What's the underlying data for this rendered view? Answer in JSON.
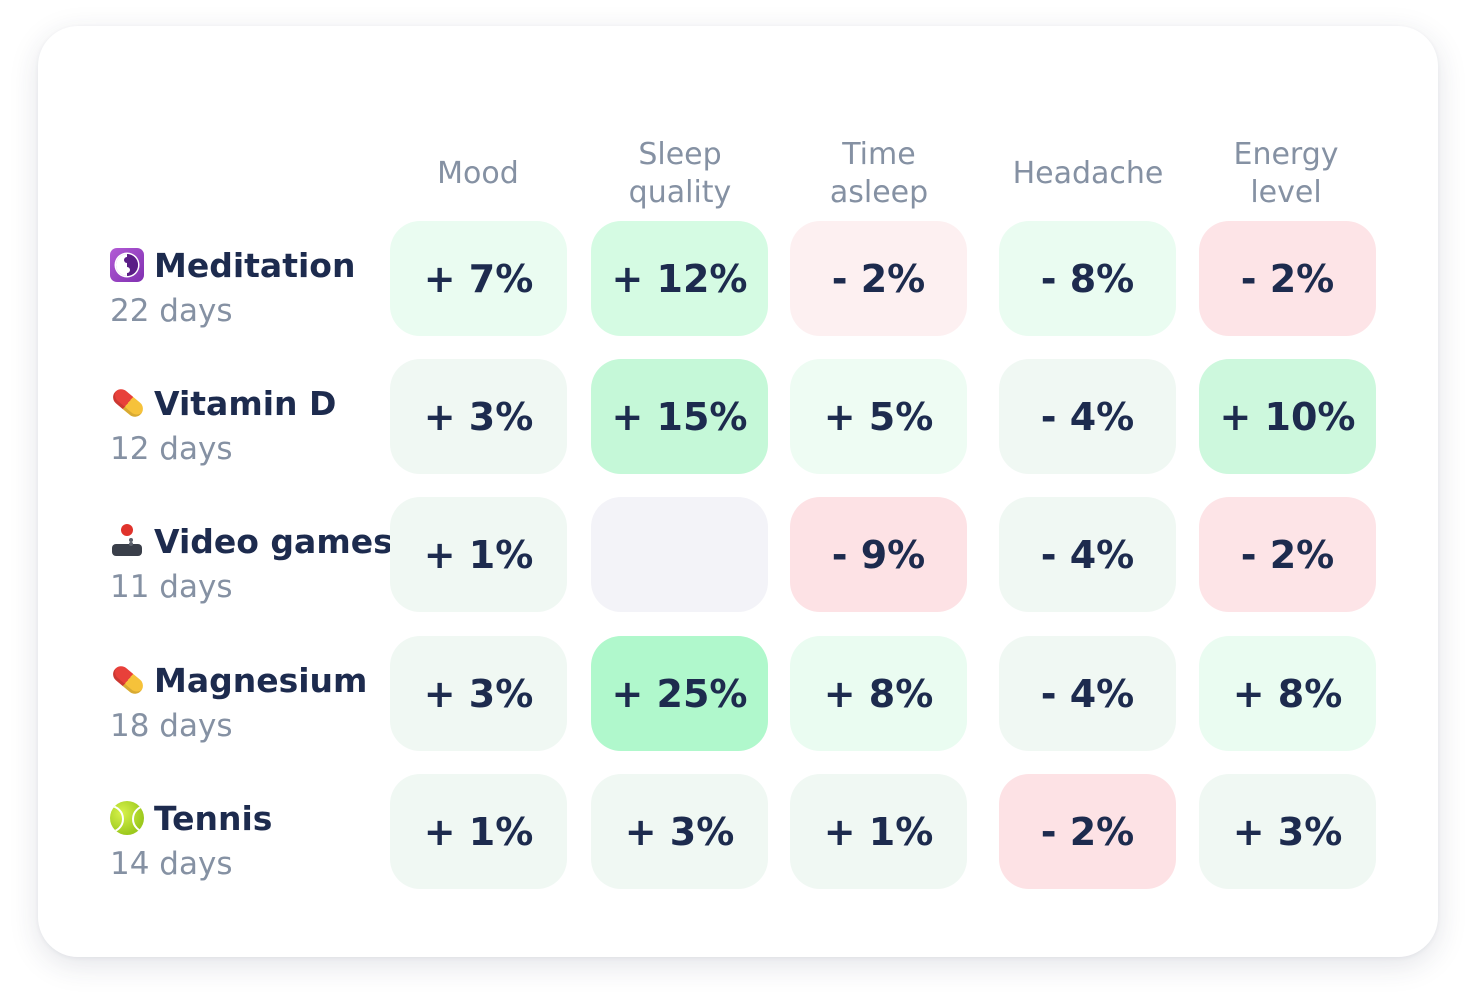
{
  "columns": [
    {
      "label": "Mood"
    },
    {
      "label": "Sleep\nquality"
    },
    {
      "label": "Time\nasleep"
    },
    {
      "label": "Headache"
    },
    {
      "label": "Energy\nlevel"
    }
  ],
  "rows": [
    {
      "name": "Meditation",
      "days": "22 days",
      "icon": "yin-yang-icon",
      "cells": [
        {
          "value": "+ 7%",
          "color": "#eafcf1"
        },
        {
          "value": "+ 12%",
          "color": "#d5fbe3"
        },
        {
          "value": "- 2%",
          "color": "#fdf0f1"
        },
        {
          "value": "- 8%",
          "color": "#eafcf1"
        },
        {
          "value": "- 2%",
          "color": "#fde4e7"
        }
      ]
    },
    {
      "name": "Vitamin D",
      "days": "12 days",
      "icon": "pill-icon",
      "cells": [
        {
          "value": "+ 3%",
          "color": "#f0f8f3"
        },
        {
          "value": "+ 15%",
          "color": "#c5f8d8"
        },
        {
          "value": "+ 5%",
          "color": "#eefcf3"
        },
        {
          "value": "- 4%",
          "color": "#f0f8f3"
        },
        {
          "value": "+ 10%",
          "color": "#cdf8dd"
        }
      ]
    },
    {
      "name": "Video games",
      "days": "11 days",
      "icon": "joystick-icon",
      "cells": [
        {
          "value": "+ 1%",
          "color": "#f0f8f3"
        },
        {
          "value": "",
          "color": "#f3f3f8"
        },
        {
          "value": "- 9%",
          "color": "#fde2e5"
        },
        {
          "value": "- 4%",
          "color": "#f0f8f3"
        },
        {
          "value": "- 2%",
          "color": "#fde4e7"
        }
      ]
    },
    {
      "name": "Magnesium",
      "days": "18 days",
      "icon": "pill-icon",
      "cells": [
        {
          "value": "+ 3%",
          "color": "#f0f8f3"
        },
        {
          "value": "+ 25%",
          "color": "#b0f8cc"
        },
        {
          "value": "+ 8%",
          "color": "#eafcf1"
        },
        {
          "value": "- 4%",
          "color": "#f0f8f3"
        },
        {
          "value": "+ 8%",
          "color": "#eafcf1"
        }
      ]
    },
    {
      "name": "Tennis",
      "days": "14 days",
      "icon": "tennis-ball-icon",
      "cells": [
        {
          "value": "+ 1%",
          "color": "#f0f8f3"
        },
        {
          "value": "+ 3%",
          "color": "#f0f8f3"
        },
        {
          "value": "+ 1%",
          "color": "#f0f8f3"
        },
        {
          "value": "- 2%",
          "color": "#fde2e5"
        },
        {
          "value": "+ 3%",
          "color": "#f0f8f3"
        }
      ]
    }
  ]
}
